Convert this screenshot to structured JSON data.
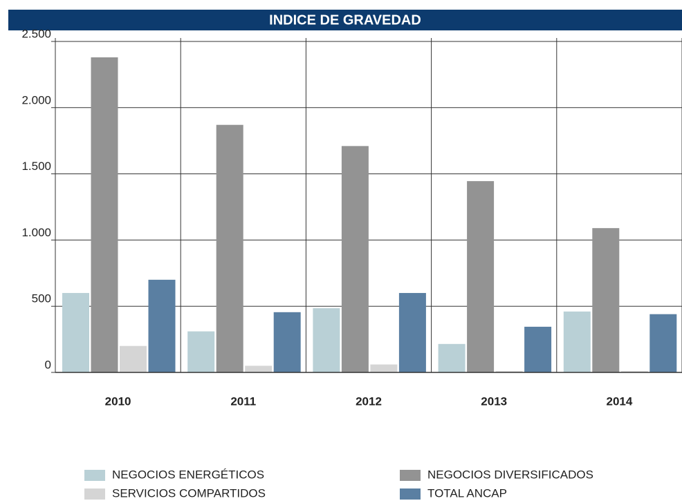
{
  "chart_data": {
    "type": "bar",
    "title": "INDICE DE GRAVEDAD",
    "categories": [
      "2010",
      "2011",
      "2012",
      "2013",
      "2014"
    ],
    "series": [
      {
        "name": "NEGOCIOS ENERGÉTICOS",
        "color": "#b9d0d6",
        "values": [
          600,
          310,
          485,
          215,
          460
        ]
      },
      {
        "name": "NEGOCIOS DIVERSIFICADOS",
        "color": "#939393",
        "values": [
          2380,
          1870,
          1710,
          1445,
          1090
        ]
      },
      {
        "name": "SERVICIOS COMPARTIDOS",
        "color": "#d5d5d5",
        "values": [
          200,
          50,
          60,
          10,
          10
        ]
      },
      {
        "name": "TOTAL ANCAP",
        "color": "#5a7fa2",
        "values": [
          700,
          455,
          600,
          345,
          440
        ]
      }
    ],
    "ylim": [
      0,
      2500
    ],
    "yticks": [
      0,
      500,
      {
        "value": 1000,
        "label": "1.000"
      },
      {
        "value": 1500,
        "label": "1.500"
      },
      {
        "value": 2000,
        "label": "2.000"
      },
      {
        "value": 2500,
        "label": "2.500"
      }
    ],
    "grid": true
  }
}
